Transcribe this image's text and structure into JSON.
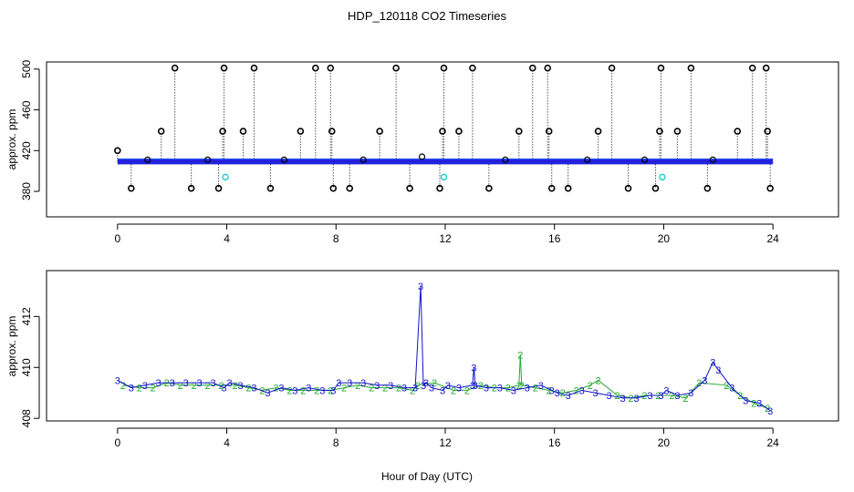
{
  "figure": {
    "title": "HDP_120118  CO2 Timeseries",
    "xlabel": "Hour of Day (UTC)"
  },
  "chart_data": [
    {
      "type": "scatter",
      "panel": "top",
      "ylabel": "approx. ppm",
      "xlim": [
        -2.6,
        26.4
      ],
      "ylim": [
        355,
        507
      ],
      "x_ticks": [
        0,
        4,
        8,
        12,
        16,
        20,
        24
      ],
      "y_ticks": [
        380,
        420,
        460,
        500
      ],
      "baseline": {
        "value": 409.2,
        "x": [
          0,
          24
        ],
        "color": "#2222dd"
      },
      "spikes": [
        {
          "x": 0.0,
          "y": 420
        },
        {
          "x": 0.5,
          "y": 383
        },
        {
          "x": 1.6,
          "y": 439
        },
        {
          "x": 2.1,
          "y": 501
        },
        {
          "x": 2.7,
          "y": 383
        },
        {
          "x": 3.7,
          "y": 383
        },
        {
          "x": 3.85,
          "y": 439
        },
        {
          "x": 3.9,
          "y": 501
        },
        {
          "x": 4.6,
          "y": 439
        },
        {
          "x": 5.0,
          "y": 501
        },
        {
          "x": 5.6,
          "y": 383
        },
        {
          "x": 6.7,
          "y": 439
        },
        {
          "x": 7.25,
          "y": 501
        },
        {
          "x": 7.8,
          "y": 501
        },
        {
          "x": 7.85,
          "y": 439
        },
        {
          "x": 7.9,
          "y": 383
        },
        {
          "x": 8.5,
          "y": 383
        },
        {
          "x": 9.6,
          "y": 439
        },
        {
          "x": 10.2,
          "y": 501
        },
        {
          "x": 10.7,
          "y": 383
        },
        {
          "x": 11.8,
          "y": 383
        },
        {
          "x": 11.9,
          "y": 439
        },
        {
          "x": 11.95,
          "y": 501
        },
        {
          "x": 12.5,
          "y": 439
        },
        {
          "x": 13.0,
          "y": 501
        },
        {
          "x": 13.6,
          "y": 383
        },
        {
          "x": 14.7,
          "y": 439
        },
        {
          "x": 15.2,
          "y": 501
        },
        {
          "x": 15.75,
          "y": 501
        },
        {
          "x": 15.8,
          "y": 439
        },
        {
          "x": 15.9,
          "y": 383
        },
        {
          "x": 16.5,
          "y": 383
        },
        {
          "x": 17.6,
          "y": 439
        },
        {
          "x": 18.1,
          "y": 501
        },
        {
          "x": 18.7,
          "y": 383
        },
        {
          "x": 19.7,
          "y": 383
        },
        {
          "x": 19.85,
          "y": 439
        },
        {
          "x": 19.9,
          "y": 501
        },
        {
          "x": 20.5,
          "y": 439
        },
        {
          "x": 21.0,
          "y": 501
        },
        {
          "x": 21.6,
          "y": 383
        },
        {
          "x": 22.7,
          "y": 439
        },
        {
          "x": 23.25,
          "y": 501
        },
        {
          "x": 23.75,
          "y": 501
        },
        {
          "x": 23.8,
          "y": 439
        },
        {
          "x": 23.9,
          "y": 383
        }
      ],
      "small_bumps": [
        {
          "x": 1.1,
          "y": 411
        },
        {
          "x": 3.3,
          "y": 411
        },
        {
          "x": 6.1,
          "y": 411
        },
        {
          "x": 9.0,
          "y": 411
        },
        {
          "x": 11.15,
          "y": 414
        },
        {
          "x": 14.2,
          "y": 411
        },
        {
          "x": 17.2,
          "y": 411
        },
        {
          "x": 19.3,
          "y": 411
        },
        {
          "x": 21.8,
          "y": 411
        }
      ],
      "cyan_points": [
        {
          "x": 3.95,
          "y": 394
        },
        {
          "x": 11.95,
          "y": 394
        },
        {
          "x": 19.95,
          "y": 394
        }
      ],
      "colors": {
        "marker": "#000000",
        "baseline": "#2222dd",
        "cyan": "#22cccc"
      }
    },
    {
      "type": "scatter",
      "panel": "bottom",
      "ylabel": "approx. ppm",
      "xlim": [
        -2.6,
        26.4
      ],
      "ylim": [
        407.9,
        413.8
      ],
      "x_ticks": [
        0,
        4,
        8,
        12,
        16,
        20,
        24
      ],
      "y_ticks": [
        408,
        410,
        412
      ],
      "segments": [
        {
          "name": "3",
          "color": "#1111cc",
          "x": [
            0.0,
            0.5,
            1.0,
            1.5,
            2.0,
            2.5,
            3.0,
            3.5,
            3.9,
            4.1,
            4.5,
            5.0,
            5.5,
            6.0,
            6.5,
            7.0,
            7.5,
            7.9,
            8.1,
            8.5,
            9.0,
            9.5,
            10.0,
            10.5,
            10.9,
            11.1,
            11.2,
            11.3,
            11.5,
            11.9,
            12.1,
            12.5,
            13.0,
            13.05,
            13.1,
            13.5,
            14.0,
            14.5,
            15.0,
            15.5,
            15.9,
            16.1,
            16.5,
            17.0,
            17.5,
            18.0,
            18.5,
            19.0,
            19.5,
            19.9,
            20.1,
            20.5,
            21.0,
            21.5,
            21.8,
            22.0,
            22.5,
            23.0,
            23.5,
            23.9
          ],
          "y": [
            409.5,
            409.2,
            409.3,
            409.4,
            409.4,
            409.4,
            409.4,
            409.4,
            409.2,
            409.4,
            409.3,
            409.2,
            409.0,
            409.2,
            409.1,
            409.2,
            409.1,
            409.1,
            409.4,
            409.4,
            409.4,
            409.3,
            409.3,
            409.2,
            409.2,
            413.2,
            409.3,
            409.4,
            409.2,
            409.1,
            409.3,
            409.2,
            409.3,
            410.0,
            409.3,
            409.2,
            409.2,
            409.1,
            409.2,
            409.3,
            409.1,
            409.0,
            408.9,
            409.1,
            409.0,
            408.9,
            408.8,
            408.8,
            408.9,
            408.9,
            409.1,
            408.9,
            409.0,
            409.5,
            410.2,
            409.9,
            409.2,
            408.7,
            408.6,
            408.3
          ]
        },
        {
          "name": "2",
          "color": "#22aa33",
          "x": [
            0.2,
            0.8,
            1.3,
            1.8,
            2.3,
            2.8,
            3.3,
            3.8,
            4.3,
            4.8,
            5.3,
            5.8,
            6.3,
            6.8,
            7.3,
            7.8,
            8.3,
            8.8,
            9.3,
            9.8,
            10.3,
            10.8,
            11.0,
            11.6,
            12.3,
            12.8,
            13.3,
            13.8,
            14.3,
            14.7,
            14.75,
            14.8,
            15.3,
            15.8,
            16.3,
            16.8,
            17.3,
            17.6,
            18.3,
            18.8,
            19.3,
            19.8,
            20.3,
            20.8,
            21.3,
            22.3,
            22.8,
            23.3,
            23.8
          ],
          "y": [
            409.3,
            409.2,
            409.2,
            409.4,
            409.3,
            409.3,
            409.3,
            409.3,
            409.3,
            409.2,
            409.1,
            409.2,
            409.1,
            409.1,
            409.1,
            409.1,
            409.2,
            409.3,
            409.2,
            409.2,
            409.2,
            409.1,
            409.3,
            409.4,
            409.1,
            409.1,
            409.3,
            409.2,
            409.2,
            409.3,
            410.5,
            409.3,
            409.2,
            409.1,
            409.0,
            409.1,
            409.3,
            409.5,
            408.9,
            408.8,
            408.9,
            408.9,
            408.9,
            408.8,
            409.4,
            409.3,
            408.9,
            408.6,
            408.4
          ]
        }
      ]
    }
  ]
}
